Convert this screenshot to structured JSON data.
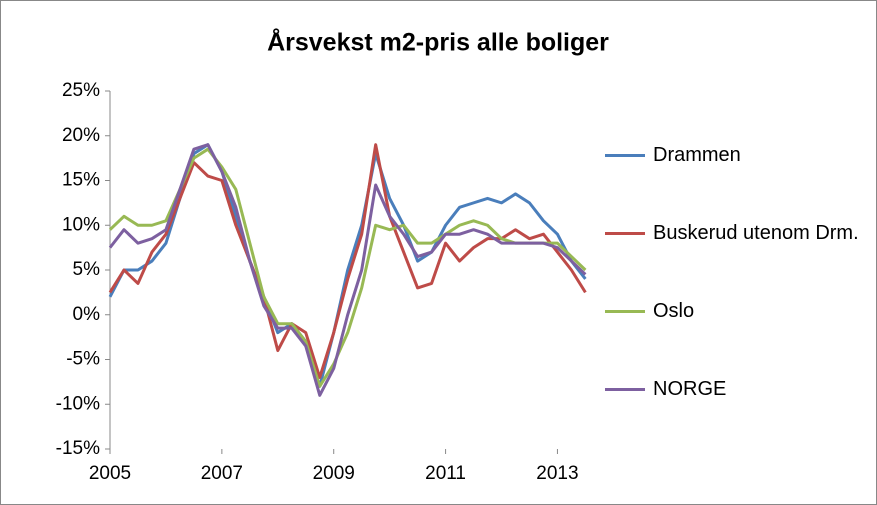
{
  "chart_data": {
    "type": "line",
    "title": "Årsvekst m2-pris alle boliger",
    "x": [
      2005,
      2005.25,
      2005.5,
      2005.75,
      2006,
      2006.25,
      2006.5,
      2006.75,
      2007,
      2007.25,
      2007.5,
      2007.75,
      2008,
      2008.25,
      2008.5,
      2008.75,
      2009,
      2009.25,
      2009.5,
      2009.75,
      2010,
      2010.25,
      2010.5,
      2010.75,
      2011,
      2011.25,
      2011.5,
      2011.75,
      2012,
      2012.25,
      2012.5,
      2012.75,
      2013,
      2013.25,
      2013.5
    ],
    "series": [
      {
        "name": "Drammen",
        "color": "#4a7ebb",
        "values": [
          2,
          5,
          5,
          6,
          8,
          13,
          18,
          19,
          16,
          11,
          6,
          2,
          -2,
          -1,
          -3,
          -8,
          -2,
          5,
          10,
          18,
          13,
          10,
          6,
          7,
          10,
          12,
          12.5,
          13,
          12.5,
          13.5,
          12.5,
          10.5,
          9,
          6,
          4
        ]
      },
      {
        "name": "Buskerud utenom Drm.",
        "color": "#be4b48",
        "values": [
          2.5,
          5,
          3.5,
          7,
          9,
          13,
          17,
          15.5,
          15,
          10,
          6,
          2,
          -4,
          -1,
          -2,
          -7,
          -2,
          4,
          9,
          19,
          11,
          7,
          3,
          3.5,
          8,
          6,
          7.5,
          8.5,
          8.5,
          9.5,
          8.5,
          9,
          7,
          5,
          2.5
        ]
      },
      {
        "name": "Oslo",
        "color": "#98b954",
        "values": [
          9.5,
          11,
          10,
          10,
          10.5,
          14,
          17.5,
          18.5,
          16.5,
          14,
          8,
          2,
          -1,
          -1,
          -3,
          -8,
          -5.5,
          -2,
          3,
          10,
          9.5,
          10,
          8,
          8,
          9,
          10,
          10.5,
          10,
          8.5,
          8,
          8,
          8,
          8,
          6.5,
          5
        ]
      },
      {
        "name": "NORGE",
        "color": "#7d60a0",
        "values": [
          7.5,
          9.5,
          8,
          8.5,
          9.5,
          14,
          18.5,
          19,
          16,
          12,
          6,
          1,
          -1.5,
          -1.5,
          -3.5,
          -9,
          -6,
          0,
          5,
          14.5,
          11,
          9,
          6.5,
          7,
          9,
          9,
          9.5,
          9,
          8,
          8,
          8,
          8,
          7.5,
          6,
          4.5
        ]
      }
    ],
    "xlim": [
      2005,
      2013.6
    ],
    "xticks": [
      2005,
      2007,
      2009,
      2011,
      2013
    ],
    "ylim": [
      -15,
      25
    ],
    "yticks": [
      {
        "value": -15,
        "label": "-15%"
      },
      {
        "value": -10,
        "label": "-10%"
      },
      {
        "value": -5,
        "label": "-5%"
      },
      {
        "value": 0,
        "label": "0%"
      },
      {
        "value": 5,
        "label": "5%"
      },
      {
        "value": 10,
        "label": "10%"
      },
      {
        "value": 15,
        "label": "15%"
      },
      {
        "value": 20,
        "label": "20%"
      },
      {
        "value": 25,
        "label": "25%"
      }
    ],
    "grid": false,
    "legend": "right"
  }
}
